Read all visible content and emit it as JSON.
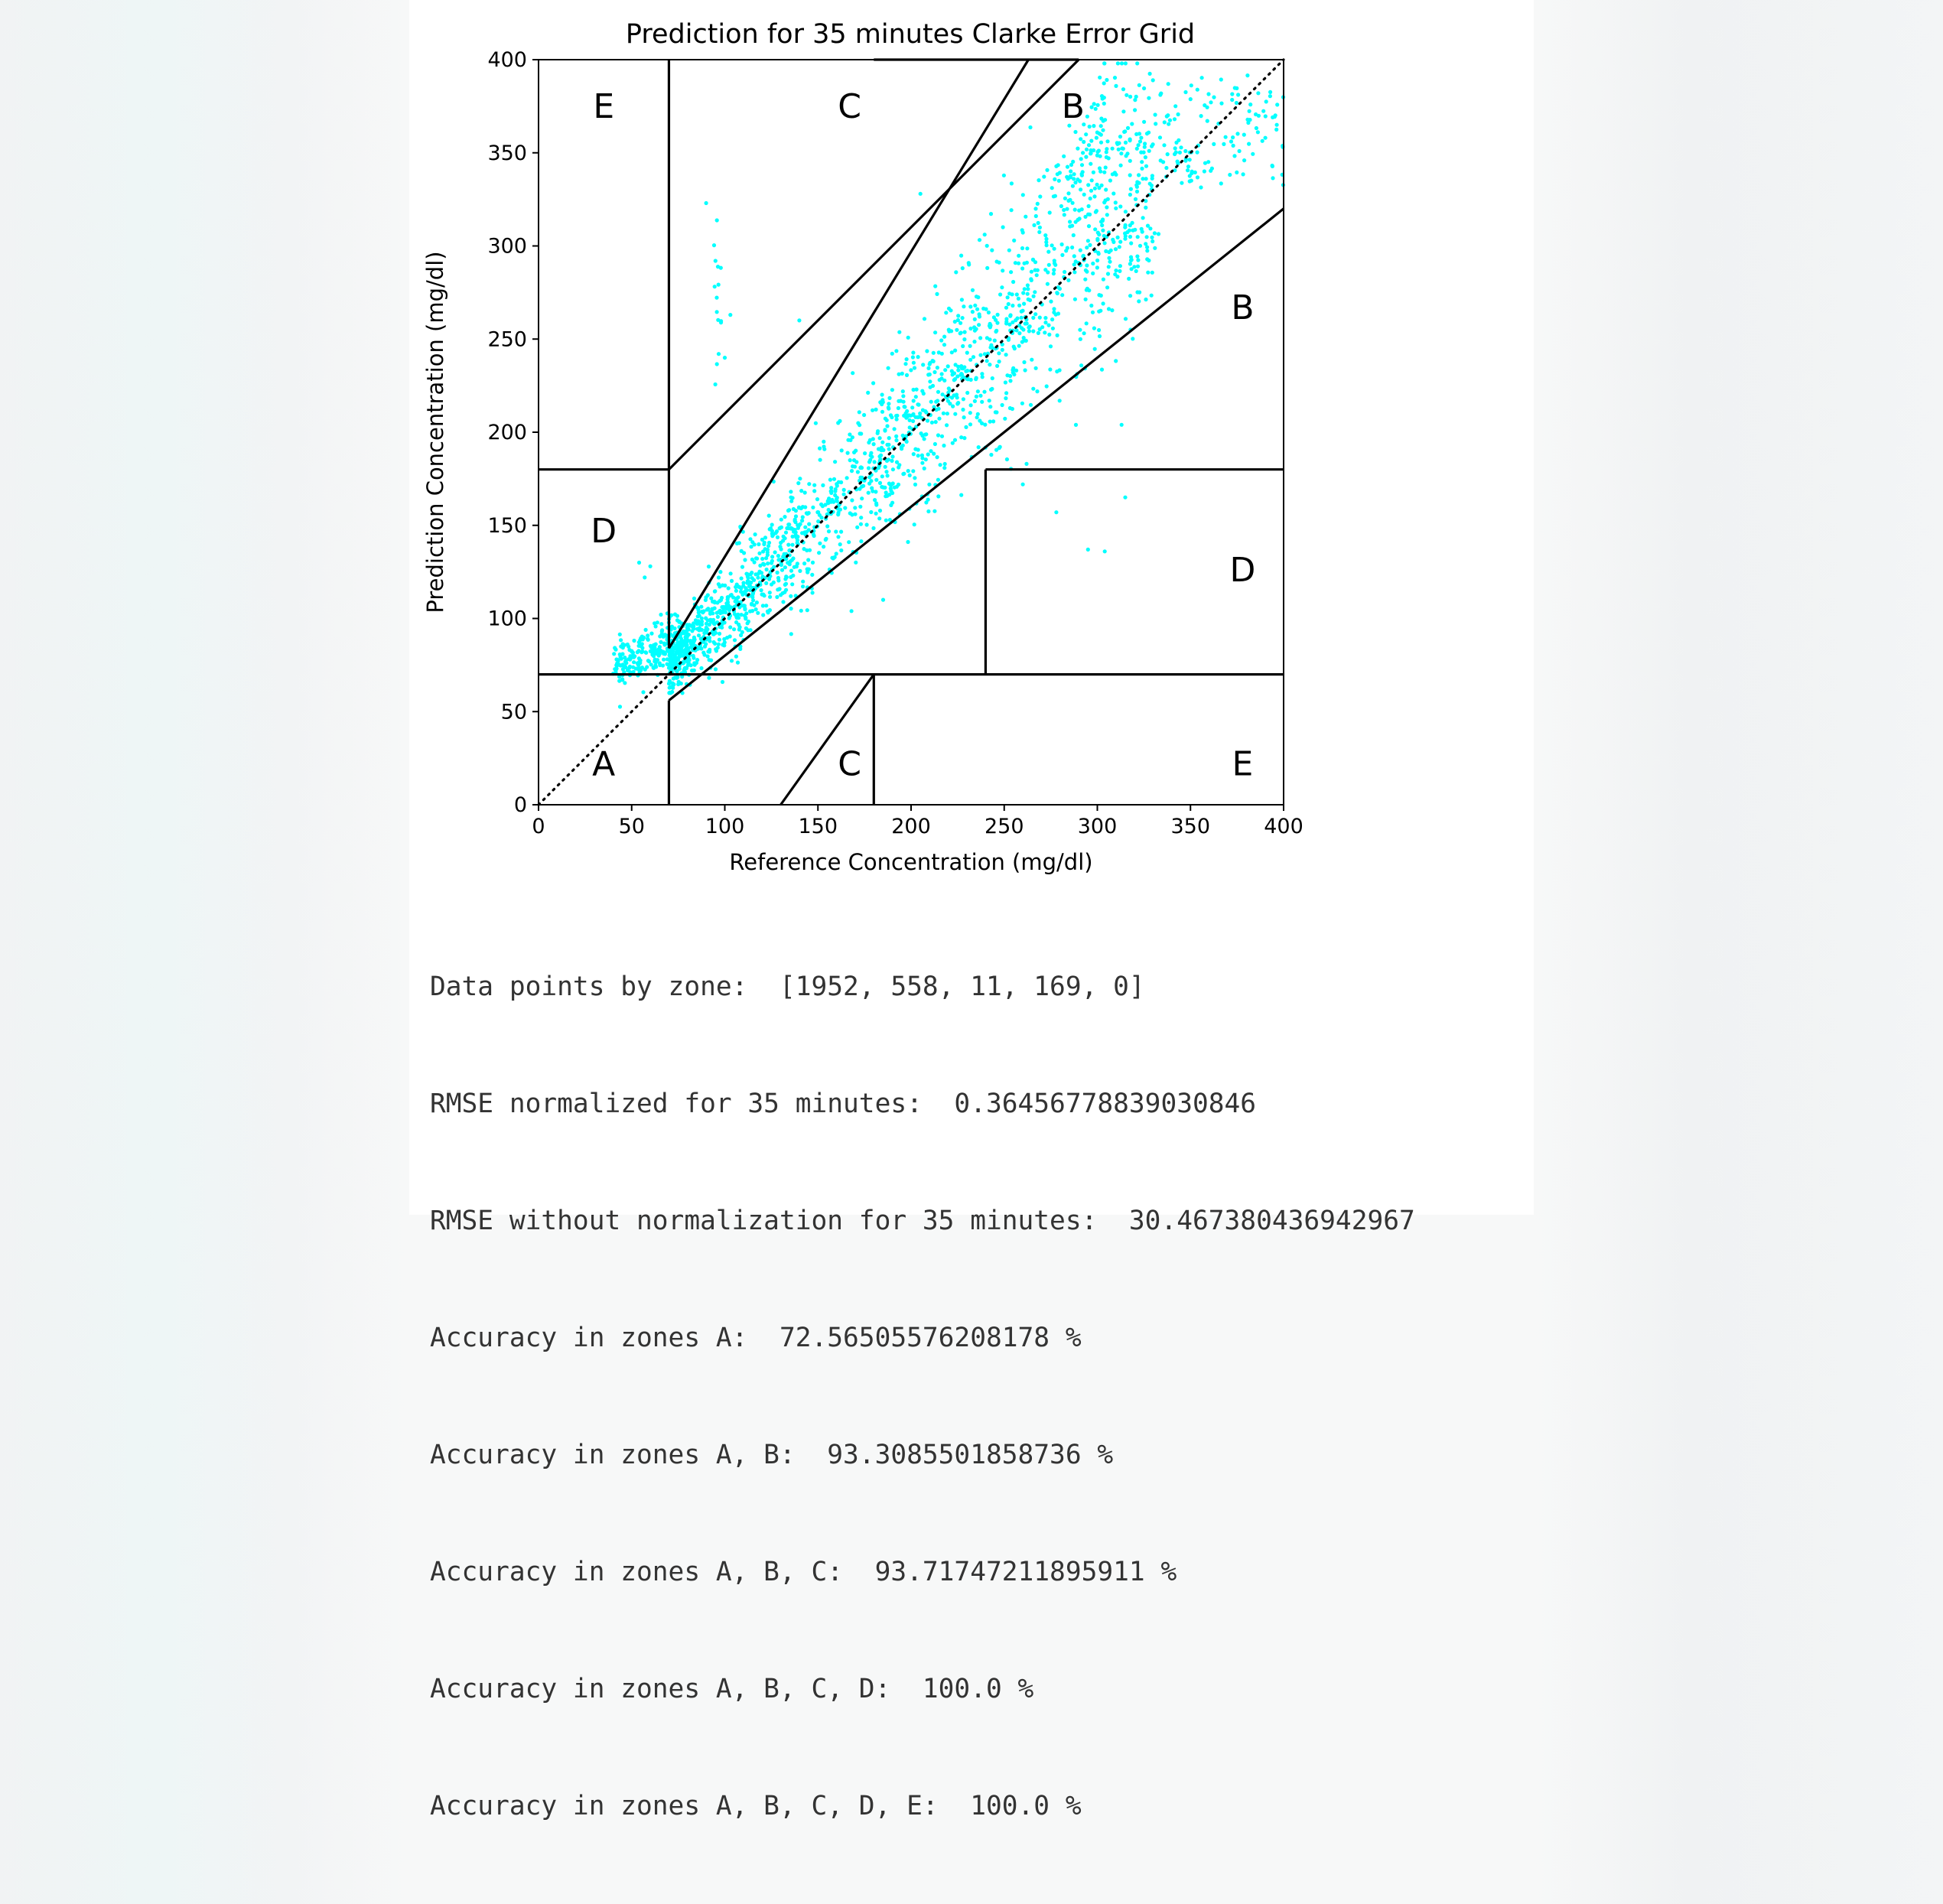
{
  "chart_data": {
    "type": "scatter",
    "title": "Prediction for 35 minutes Clarke Error Grid",
    "xlabel": "Reference Concentration (mg/dl)",
    "ylabel": "Prediction Concentration (mg/dl)",
    "xlim": [
      0,
      400
    ],
    "ylim": [
      0,
      400
    ],
    "xticks": [
      0,
      50,
      100,
      150,
      200,
      250,
      300,
      350,
      400
    ],
    "yticks": [
      0,
      50,
      100,
      150,
      200,
      250,
      300,
      350,
      400
    ],
    "point_color": "#00ffff",
    "line_color": "#000000",
    "zone_labels": [
      {
        "text": "E",
        "x": 35,
        "y": 375
      },
      {
        "text": "C",
        "x": 167,
        "y": 375
      },
      {
        "text": "B",
        "x": 287,
        "y": 375
      },
      {
        "text": "B",
        "x": 378,
        "y": 267
      },
      {
        "text": "D",
        "x": 35,
        "y": 147
      },
      {
        "text": "D",
        "x": 378,
        "y": 126
      },
      {
        "text": "A",
        "x": 35,
        "y": 22
      },
      {
        "text": "C",
        "x": 167,
        "y": 22
      },
      {
        "text": "E",
        "x": 378,
        "y": 22
      }
    ],
    "boundary_lines": [
      [
        [
          0,
          400
        ],
        [
          70,
          70
        ]
      ],
      [
        [
          70,
          70
        ],
        [
          84,
          400
        ]
      ],
      [
        [
          0,
          70
        ],
        [
          180,
          180
        ]
      ],
      [
        [
          70,
          290
        ],
        [
          180,
          400
        ]
      ],
      [
        [
          70,
          70
        ],
        [
          0,
          56
        ]
      ],
      [
        [
          70,
          400
        ],
        [
          56,
          320
        ]
      ],
      [
        [
          290,
          180
        ],
        [
          400,
          400
        ]
      ],
      [
        [
          180,
          180
        ],
        [
          0,
          70
        ]
      ],
      [
        [
          180,
          400
        ],
        [
          70,
          70
        ]
      ],
      [
        [
          240,
          240
        ],
        [
          70,
          180
        ]
      ],
      [
        [
          240,
          400
        ],
        [
          180,
          180
        ]
      ],
      [
        [
          0,
          58.33
        ],
        [
          70,
          70
        ]
      ],
      [
        [
          130,
          180
        ],
        [
          0,
          70
        ]
      ],
      [
        [
          70,
          263
        ],
        [
          84,
          400
        ]
      ]
    ],
    "diagonal": [
      [
        0,
        400
      ],
      [
        0,
        400
      ]
    ],
    "series_description": "2690 scatter points of reference vs predicted glucose"
  },
  "output_lines": [
    "Data points by zone:  [1952, 558, 11, 169, 0]",
    "RMSE normalized for 35 minutes:  0.36456778839030846",
    "RMSE without normalization for 35 minutes:  30.467380436942967",
    "Accuracy in zones A:  72.56505576208178 %",
    "Accuracy in zones A, B:  93.3085501858736 %",
    "Accuracy in zones A, B, C:  93.71747211895911 %",
    "Accuracy in zones A, B, C, D:  100.0 %",
    "Accuracy in zones A, B, C, D, E:  100.0 %"
  ]
}
